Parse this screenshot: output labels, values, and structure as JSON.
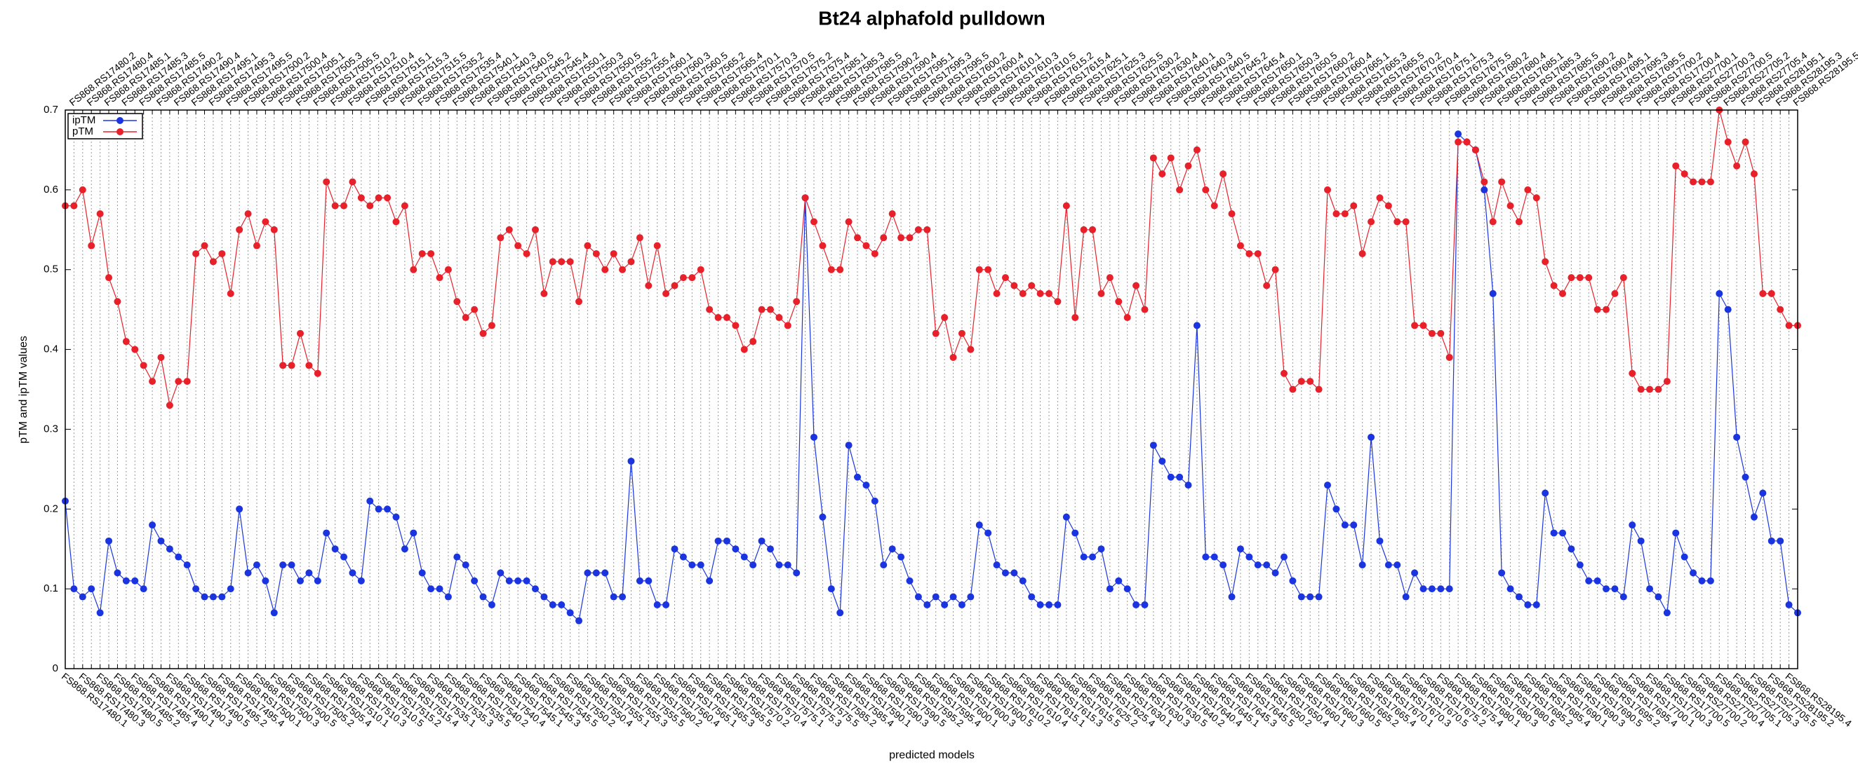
{
  "chart_data": {
    "type": "line",
    "title": "Bt24 alphafold pulldown",
    "x_label": "predicted models",
    "y_label": "pTM and ipTM values",
    "ylim": [
      0,
      0.7
    ],
    "yticks": [
      0,
      {
        "value": 0.1,
        "label": "0.1"
      },
      {
        "value": 0.2,
        "label": "0.2"
      },
      {
        "value": 0.3,
        "label": "0.3"
      },
      {
        "value": 0.4,
        "label": "0.4"
      },
      {
        "value": 0.5,
        "label": "0.5"
      },
      {
        "value": 0.6,
        "label": "0.6"
      },
      {
        "value": 0.7,
        "label": "0.7"
      }
    ],
    "grid": true,
    "legend": "upper left",
    "categories": [
      "FS868.RS17480.1",
      "FS868.RS17480.2",
      "FS868.RS17480.3",
      "FS868.RS17480.4",
      "FS868.RS17480.5",
      "FS868.RS17485.1",
      "FS868.RS17485.2",
      "FS868.RS17485.3",
      "FS868.RS17485.4",
      "FS868.RS17485.5",
      "FS868.RS17490.1",
      "FS868.RS17490.2",
      "FS868.RS17490.3",
      "FS868.RS17490.4",
      "FS868.RS17490.5",
      "FS868.RS17495.1",
      "FS868.RS17495.2",
      "FS868.RS17495.3",
      "FS868.RS17495.4",
      "FS868.RS17495.5",
      "FS868.RS17500.1",
      "FS868.RS17500.2",
      "FS868.RS17500.3",
      "FS868.RS17500.4",
      "FS868.RS17500.5",
      "FS868.RS17505.1",
      "FS868.RS17505.2",
      "FS868.RS17505.3",
      "FS868.RS17505.4",
      "FS868.RS17505.5",
      "FS868.RS17510.1",
      "FS868.RS17510.2",
      "FS868.RS17510.3",
      "FS868.RS17510.4",
      "FS868.RS17510.5",
      "FS868.RS17515.1",
      "FS868.RS17515.2",
      "FS868.RS17515.3",
      "FS868.RS17515.4",
      "FS868.RS17515.5",
      "FS868.RS17535.1",
      "FS868.RS17535.2",
      "FS868.RS17535.3",
      "FS868.RS17535.4",
      "FS868.RS17535.5",
      "FS868.RS17540.1",
      "FS868.RS17540.2",
      "FS868.RS17540.3",
      "FS868.RS17540.4",
      "FS868.RS17540.5",
      "FS868.RS17545.1",
      "FS868.RS17545.2",
      "FS868.RS17545.3",
      "FS868.RS17545.4",
      "FS868.RS17545.5",
      "FS868.RS17550.1",
      "FS868.RS17550.2",
      "FS868.RS17550.3",
      "FS868.RS17550.4",
      "FS868.RS17550.5",
      "FS868.RS17555.1",
      "FS868.RS17555.2",
      "FS868.RS17555.3",
      "FS868.RS17555.4",
      "FS868.RS17555.5",
      "FS868.RS17560.1",
      "FS868.RS17560.2",
      "FS868.RS17560.3",
      "FS868.RS17560.4",
      "FS868.RS17560.5",
      "FS868.RS17565.1",
      "FS868.RS17565.2",
      "FS868.RS17565.3",
      "FS868.RS17565.4",
      "FS868.RS17565.5",
      "FS868.RS17570.1",
      "FS868.RS17570.2",
      "FS868.RS17570.3",
      "FS868.RS17570.4",
      "FS868.RS17570.5",
      "FS868.RS17575.1",
      "FS868.RS17575.2",
      "FS868.RS17575.3",
      "FS868.RS17575.4",
      "FS868.RS17575.5",
      "FS868.RS17585.1",
      "FS868.RS17585.2",
      "FS868.RS17585.3",
      "FS868.RS17585.4",
      "FS868.RS17585.5",
      "FS868.RS17590.1",
      "FS868.RS17590.2",
      "FS868.RS17590.3",
      "FS868.RS17590.4",
      "FS868.RS17590.5",
      "FS868.RS17595.1",
      "FS868.RS17595.2",
      "FS868.RS17595.3",
      "FS868.RS17595.4",
      "FS868.RS17595.5",
      "FS868.RS17600.1",
      "FS868.RS17600.2",
      "FS868.RS17600.3",
      "FS868.RS17600.4",
      "FS868.RS17600.5",
      "FS868.RS17610.1",
      "FS868.RS17610.2",
      "FS868.RS17610.3",
      "FS868.RS17610.4",
      "FS868.RS17610.5",
      "FS868.RS17615.1",
      "FS868.RS17615.2",
      "FS868.RS17615.3",
      "FS868.RS17615.4",
      "FS868.RS17615.5",
      "FS868.RS17625.1",
      "FS868.RS17625.2",
      "FS868.RS17625.3",
      "FS868.RS17625.4",
      "FS868.RS17625.5",
      "FS868.RS17630.1",
      "FS868.RS17630.2",
      "FS868.RS17630.3",
      "FS868.RS17630.4",
      "FS868.RS17630.5",
      "FS868.RS17640.1",
      "FS868.RS17640.2",
      "FS868.RS17640.3",
      "FS868.RS17640.4",
      "FS868.RS17640.5",
      "FS868.RS17645.1",
      "FS868.RS17645.2",
      "FS868.RS17645.3",
      "FS868.RS17645.4",
      "FS868.RS17645.5",
      "FS868.RS17650.1",
      "FS868.RS17650.2",
      "FS868.RS17650.3",
      "FS868.RS17650.4",
      "FS868.RS17650.5",
      "FS868.RS17660.1",
      "FS868.RS17660.2",
      "FS868.RS17660.3",
      "FS868.RS17660.4",
      "FS868.RS17660.5",
      "FS868.RS17665.1",
      "FS868.RS17665.2",
      "FS868.RS17665.3",
      "FS868.RS17665.4",
      "FS868.RS17665.5",
      "FS868.RS17670.1",
      "FS868.RS17670.2",
      "FS868.RS17670.3",
      "FS868.RS17670.4",
      "FS868.RS17670.5",
      "FS868.RS17675.1",
      "FS868.RS17675.2",
      "FS868.RS17675.3",
      "FS868.RS17675.4",
      "FS868.RS17675.5",
      "FS868.RS17680.1",
      "FS868.RS17680.2",
      "FS868.RS17680.3",
      "FS868.RS17680.4",
      "FS868.RS17680.5",
      "FS868.RS17685.1",
      "FS868.RS17685.2",
      "FS868.RS17685.3",
      "FS868.RS17685.4",
      "FS868.RS17685.5",
      "FS868.RS17690.1",
      "FS868.RS17690.2",
      "FS868.RS17690.3",
      "FS868.RS17690.4",
      "FS868.RS17690.5",
      "FS868.RS17695.1",
      "FS868.RS17695.2",
      "FS868.RS17695.3",
      "FS868.RS17695.4",
      "FS868.RS17695.5",
      "FS868.RS17700.1",
      "FS868.RS17700.2",
      "FS868.RS17700.3",
      "FS868.RS17700.4",
      "FS868.RS17700.5",
      "FS868.RS27700.1",
      "FS868.RS27700.2",
      "FS868.RS27700.3",
      "FS868.RS27700.4",
      "FS868.RS27700.5",
      "FS868.RS27705.1",
      "FS868.RS27705.2",
      "FS868.RS27705.3",
      "FS868.RS27705.4",
      "FS868.RS27705.5",
      "FS868.RS28195.1",
      "FS868.RS28195.2",
      "FS868.RS28195.3",
      "FS868.RS28195.4",
      "FS868.RS28195.5"
    ],
    "series": [
      {
        "name": "ipTM",
        "color": "#1a35e0",
        "values": [
          0.21,
          0.1,
          0.09,
          0.1,
          0.07,
          0.16,
          0.12,
          0.11,
          0.11,
          0.1,
          0.18,
          0.16,
          0.15,
          0.14,
          0.13,
          0.1,
          0.09,
          0.09,
          0.09,
          0.1,
          0.2,
          0.12,
          0.13,
          0.11,
          0.07,
          0.13,
          0.13,
          0.11,
          0.12,
          0.11,
          0.17,
          0.15,
          0.14,
          0.12,
          0.11,
          0.21,
          0.2,
          0.2,
          0.19,
          0.15,
          0.17,
          0.12,
          0.1,
          0.1,
          0.09,
          0.14,
          0.13,
          0.11,
          0.09,
          0.08,
          0.12,
          0.11,
          0.11,
          0.11,
          0.1,
          0.09,
          0.08,
          0.08,
          0.07,
          0.06,
          0.12,
          0.12,
          0.12,
          0.09,
          0.09,
          0.26,
          0.11,
          0.11,
          0.08,
          0.08,
          0.15,
          0.14,
          0.13,
          0.13,
          0.11,
          0.16,
          0.16,
          0.15,
          0.14,
          0.13,
          0.16,
          0.15,
          0.13,
          0.13,
          0.12,
          0.59,
          0.29,
          0.19,
          0.1,
          0.07,
          0.28,
          0.24,
          0.23,
          0.21,
          0.13,
          0.15,
          0.14,
          0.11,
          0.09,
          0.08,
          0.09,
          0.08,
          0.09,
          0.08,
          0.09,
          0.18,
          0.17,
          0.13,
          0.12,
          0.12,
          0.11,
          0.09,
          0.08,
          0.08,
          0.08,
          0.19,
          0.17,
          0.14,
          0.14,
          0.15,
          0.1,
          0.11,
          0.1,
          0.08,
          0.08,
          0.28,
          0.26,
          0.24,
          0.24,
          0.23,
          0.43,
          0.14,
          0.14,
          0.13,
          0.09,
          0.15,
          0.14,
          0.13,
          0.13,
          0.12,
          0.14,
          0.11,
          0.09,
          0.09,
          0.09,
          0.23,
          0.2,
          0.18,
          0.18,
          0.13,
          0.29,
          0.16,
          0.13,
          0.13,
          0.09,
          0.12,
          0.1,
          0.1,
          0.1,
          0.1,
          0.67,
          0.66,
          0.65,
          0.6,
          0.47,
          0.12,
          0.1,
          0.09,
          0.08,
          0.08,
          0.22,
          0.17,
          0.17,
          0.15,
          0.13,
          0.11,
          0.11,
          0.1,
          0.1,
          0.09,
          0.18,
          0.16,
          0.1,
          0.09,
          0.07,
          0.17,
          0.14,
          0.12,
          0.11,
          0.11,
          0.47,
          0.45,
          0.29,
          0.24,
          0.19,
          0.22,
          0.16,
          0.16,
          0.08,
          0.07
        ]
      },
      {
        "name": "pTM",
        "color": "#e8202a",
        "values": [
          0.58,
          0.58,
          0.6,
          0.53,
          0.57,
          0.49,
          0.46,
          0.41,
          0.4,
          0.38,
          0.36,
          0.39,
          0.33,
          0.36,
          0.36,
          0.52,
          0.53,
          0.51,
          0.52,
          0.47,
          0.55,
          0.57,
          0.53,
          0.56,
          0.55,
          0.38,
          0.38,
          0.42,
          0.38,
          0.37,
          0.61,
          0.58,
          0.58,
          0.61,
          0.59,
          0.58,
          0.59,
          0.59,
          0.56,
          0.58,
          0.5,
          0.52,
          0.52,
          0.49,
          0.5,
          0.46,
          0.44,
          0.45,
          0.42,
          0.43,
          0.54,
          0.55,
          0.53,
          0.52,
          0.55,
          0.47,
          0.51,
          0.51,
          0.51,
          0.46,
          0.53,
          0.52,
          0.5,
          0.52,
          0.5,
          0.51,
          0.54,
          0.48,
          0.53,
          0.47,
          0.48,
          0.49,
          0.49,
          0.5,
          0.45,
          0.44,
          0.44,
          0.43,
          0.4,
          0.41,
          0.45,
          0.45,
          0.44,
          0.43,
          0.46,
          0.59,
          0.56,
          0.53,
          0.5,
          0.5,
          0.56,
          0.54,
          0.53,
          0.52,
          0.54,
          0.57,
          0.54,
          0.54,
          0.55,
          0.55,
          0.42,
          0.44,
          0.39,
          0.42,
          0.4,
          0.5,
          0.5,
          0.47,
          0.49,
          0.48,
          0.47,
          0.48,
          0.47,
          0.47,
          0.46,
          0.58,
          0.44,
          0.55,
          0.55,
          0.47,
          0.49,
          0.46,
          0.44,
          0.48,
          0.45,
          0.64,
          0.62,
          0.64,
          0.6,
          0.63,
          0.65,
          0.6,
          0.58,
          0.62,
          0.57,
          0.53,
          0.52,
          0.52,
          0.48,
          0.5,
          0.37,
          0.35,
          0.36,
          0.36,
          0.35,
          0.6,
          0.57,
          0.57,
          0.58,
          0.52,
          0.56,
          0.59,
          0.58,
          0.56,
          0.56,
          0.43,
          0.43,
          0.42,
          0.42,
          0.39,
          0.66,
          0.66,
          0.65,
          0.61,
          0.56,
          0.61,
          0.58,
          0.56,
          0.6,
          0.59,
          0.51,
          0.48,
          0.47,
          0.49,
          0.49,
          0.49,
          0.45,
          0.45,
          0.47,
          0.49,
          0.37,
          0.35,
          0.35,
          0.35,
          0.36,
          0.63,
          0.62,
          0.61,
          0.61,
          0.61,
          0.7,
          0.66,
          0.63,
          0.66,
          0.62,
          0.47,
          0.47,
          0.45,
          0.43,
          0.43
        ]
      }
    ]
  }
}
